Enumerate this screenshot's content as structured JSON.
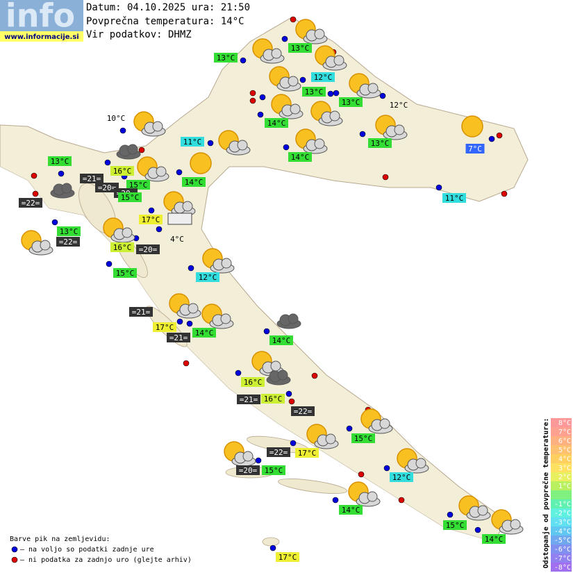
{
  "header": {
    "logo": "info",
    "site": "www.informacije.si",
    "date": "Datum: 04.10.2025 ura: 21:50",
    "average": "Povprečna temperatura: 14°C",
    "source": "Vir podatkov: DHMZ"
  },
  "stations": [
    {
      "label": "13°C",
      "color": "#33dd33"
    },
    {
      "label": "13°C",
      "color": "#33dd33"
    },
    {
      "label": "12°C",
      "color": "#33dddd"
    },
    {
      "label": "13°C",
      "color": "#33dd33"
    },
    {
      "label": "13°C",
      "color": "#33dd33"
    },
    {
      "label": "12°C"
    },
    {
      "label": "10°C"
    },
    {
      "label": "14°C",
      "color": "#33dd33"
    },
    {
      "label": "11°C",
      "color": "#33dddd"
    },
    {
      "label": "13°C",
      "color": "#33dd33"
    },
    {
      "label": "7°C",
      "color": "#3366ff"
    },
    {
      "label": "13°C",
      "color": "#33dd33"
    },
    {
      "label": "14°C",
      "color": "#33dd33"
    },
    {
      "label": "16°C",
      "color": "#ccee33"
    },
    {
      "label": "=21=",
      "color": "#333333"
    },
    {
      "label": "=20=",
      "color": "#333333"
    },
    {
      "label": "15°C",
      "color": "#33dd33"
    },
    {
      "label": "=20=",
      "color": "#333333"
    },
    {
      "label": "14°C",
      "color": "#33dd33"
    },
    {
      "label": "15°C",
      "color": "#33dd33"
    },
    {
      "label": "=22=",
      "color": "#333333"
    },
    {
      "label": "11°C",
      "color": "#33dddd"
    },
    {
      "label": "17°C",
      "color": "#eeee33"
    },
    {
      "label": "13°C",
      "color": "#33dd33"
    },
    {
      "label": "4°C"
    },
    {
      "label": "=22=",
      "color": "#333333"
    },
    {
      "label": "16°C",
      "color": "#ccee33"
    },
    {
      "label": "=20=",
      "color": "#333333"
    },
    {
      "label": "15°C",
      "color": "#33dd33"
    },
    {
      "label": "12°C",
      "color": "#33dddd"
    },
    {
      "label": "=21=",
      "color": "#333333"
    },
    {
      "label": "17°C",
      "color": "#eeee33"
    },
    {
      "label": "14°C",
      "color": "#33dd33"
    },
    {
      "label": "=21=",
      "color": "#333333"
    },
    {
      "label": "14°C",
      "color": "#33dd33"
    },
    {
      "label": "16°C",
      "color": "#ccee33"
    },
    {
      "label": "=21=",
      "color": "#333333"
    },
    {
      "label": "16°C",
      "color": "#ccee33"
    },
    {
      "label": "=22=",
      "color": "#333333"
    },
    {
      "label": "15°C",
      "color": "#33dd33"
    },
    {
      "label": "=22=",
      "color": "#333333"
    },
    {
      "label": "17°C",
      "color": "#eeee33"
    },
    {
      "label": "=20=",
      "color": "#333333"
    },
    {
      "label": "15°C",
      "color": "#33dd33"
    },
    {
      "label": "12°C",
      "color": "#33dddd"
    },
    {
      "label": "14°C",
      "color": "#33dd33"
    },
    {
      "label": "15°C",
      "color": "#33dd33"
    },
    {
      "label": "14°C",
      "color": "#33dd33"
    },
    {
      "label": "17°C",
      "color": "#eeee33"
    }
  ],
  "legend": {
    "title": "Barve pik na zemljevidu:",
    "items": [
      {
        "label": "– na voljo so podatki zadnje ure",
        "color": "#0000dd"
      },
      {
        "label": "– ni podatka za zadnjo uro (glejte arhiv)",
        "color": "#dd0000"
      }
    ]
  },
  "scale": {
    "title": "Odstopanje od povprečne temperature:",
    "steps": [
      {
        "label": "8°C",
        "color": "#ff9999"
      },
      {
        "label": "7°C",
        "color": "#ffa090"
      },
      {
        "label": "6°C",
        "color": "#ffb080"
      },
      {
        "label": "5°C",
        "color": "#ffc070"
      },
      {
        "label": "4°C",
        "color": "#ffd060"
      },
      {
        "label": "3°C",
        "color": "#ffe060"
      },
      {
        "label": "2°C",
        "color": "#e8f060"
      },
      {
        "label": "1°C",
        "color": "#b8f060"
      },
      {
        "label": "",
        "color": "#80f080"
      },
      {
        "label": "-1°C",
        "color": "#60f0b0"
      },
      {
        "label": "-2°C",
        "color": "#60f0e0"
      },
      {
        "label": "-3°C",
        "color": "#60e0f0"
      },
      {
        "label": "-4°C",
        "color": "#60c8f0"
      },
      {
        "label": "-5°C",
        "color": "#70a8f0"
      },
      {
        "label": "-6°C",
        "color": "#8090f0"
      },
      {
        "label": "-7°C",
        "color": "#9080f0"
      },
      {
        "label": "-8°C",
        "color": "#a070f0"
      }
    ]
  }
}
